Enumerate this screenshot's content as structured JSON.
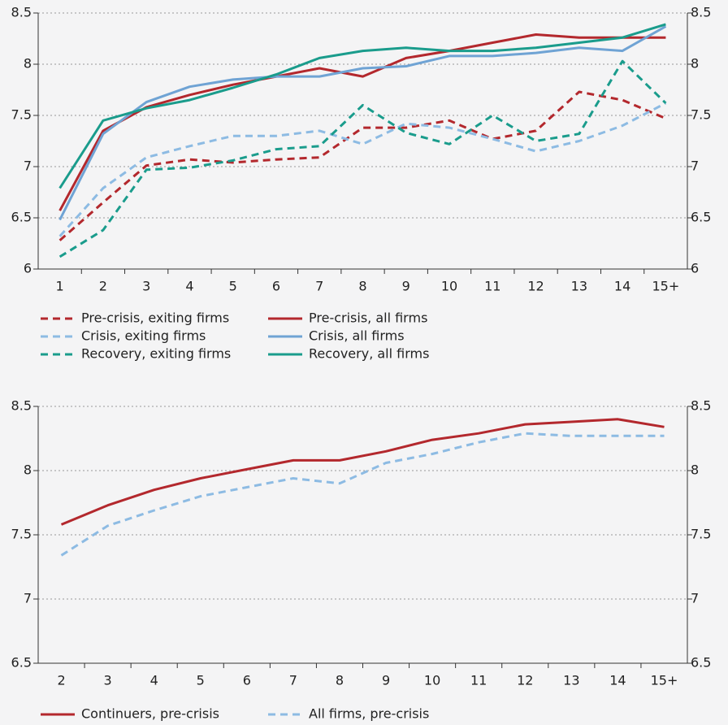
{
  "chart_data": [
    {
      "type": "line",
      "categories": [
        "1",
        "2",
        "3",
        "4",
        "5",
        "6",
        "7",
        "8",
        "9",
        "10",
        "11",
        "12",
        "13",
        "14",
        "15+"
      ],
      "series": [
        {
          "name": "Pre-crisis, exiting firms",
          "color": "#b3282d",
          "dashed": true,
          "values": [
            6.28,
            6.65,
            7.01,
            7.07,
            7.04,
            7.07,
            7.09,
            7.38,
            7.38,
            7.45,
            7.27,
            7.35,
            7.73,
            7.65,
            7.47
          ]
        },
        {
          "name": "Crisis, exiting firms",
          "color": "#8dbbe3",
          "dashed": true,
          "values": [
            6.32,
            6.79,
            7.09,
            7.2,
            7.3,
            7.3,
            7.35,
            7.22,
            7.42,
            7.38,
            7.27,
            7.15,
            7.25,
            7.4,
            7.62
          ]
        },
        {
          "name": "Recovery, exiting firms",
          "color": "#1a9c8c",
          "dashed": true,
          "values": [
            6.12,
            6.38,
            6.97,
            6.99,
            7.06,
            7.17,
            7.2,
            7.6,
            7.33,
            7.22,
            7.5,
            7.25,
            7.32,
            8.03,
            7.62
          ]
        },
        {
          "name": "Pre-crisis, all firms",
          "color": "#b3282d",
          "dashed": false,
          "values": [
            6.57,
            7.35,
            7.58,
            7.7,
            7.8,
            7.88,
            7.96,
            7.88,
            8.06,
            8.13,
            8.21,
            8.29,
            8.26,
            8.26,
            8.26
          ]
        },
        {
          "name": "Crisis, all firms",
          "color": "#6fa3d4",
          "dashed": false,
          "values": [
            6.48,
            7.32,
            7.63,
            7.78,
            7.85,
            7.88,
            7.88,
            7.96,
            7.98,
            8.08,
            8.08,
            8.11,
            8.16,
            8.13,
            8.37
          ]
        },
        {
          "name": "Recovery, all firms",
          "color": "#1a9c8c",
          "dashed": false,
          "values": [
            6.79,
            7.45,
            7.57,
            7.65,
            7.77,
            7.9,
            8.06,
            8.13,
            8.16,
            8.13,
            8.13,
            8.16,
            8.21,
            8.26,
            8.39
          ]
        }
      ],
      "ylim": [
        6,
        8.5
      ],
      "yticks": [
        6,
        6.5,
        7,
        7.5,
        8,
        8.5
      ],
      "y2lim": [
        6,
        8.5
      ],
      "y2ticks": [
        6,
        6.5,
        7,
        7.5,
        8,
        8.5
      ],
      "grid": true
    },
    {
      "type": "line",
      "categories": [
        "2",
        "3",
        "4",
        "5",
        "6",
        "7",
        "8",
        "9",
        "10",
        "11",
        "12",
        "13",
        "14",
        "15+"
      ],
      "series": [
        {
          "name": "Continuers, pre-crisis",
          "color": "#b3282d",
          "dashed": false,
          "values": [
            7.58,
            7.73,
            7.85,
            7.94,
            8.01,
            8.08,
            8.08,
            8.15,
            8.24,
            8.29,
            8.36,
            8.38,
            8.4,
            8.34
          ]
        },
        {
          "name": "All firms, pre-crisis",
          "color": "#8dbbe3",
          "dashed": true,
          "values": [
            7.34,
            7.57,
            7.69,
            7.8,
            7.87,
            7.94,
            7.9,
            8.06,
            8.13,
            8.22,
            8.29,
            8.27,
            8.27,
            8.27
          ]
        }
      ],
      "ylim": [
        6.5,
        8.5
      ],
      "yticks": [
        6.5,
        7,
        7.5,
        8,
        8.5
      ],
      "y2lim": [
        6.5,
        8.5
      ],
      "y2ticks": [
        6.5,
        7,
        7.5,
        8,
        8.5
      ],
      "grid": true
    }
  ]
}
